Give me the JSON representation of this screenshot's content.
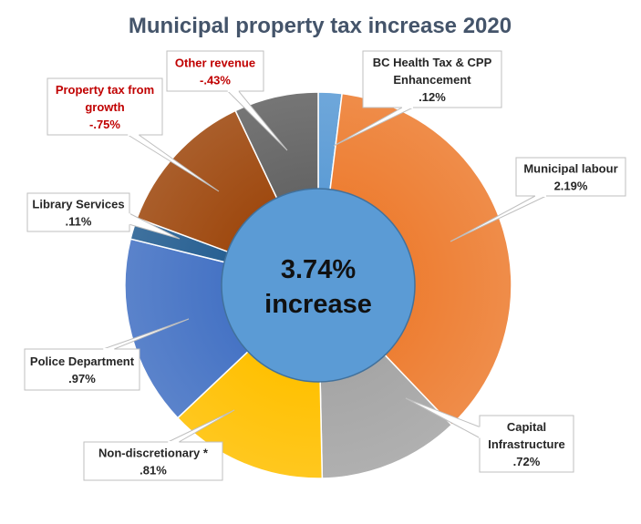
{
  "chart_data": {
    "type": "pie",
    "title": "Municipal property tax increase 2020",
    "center_label": [
      "3.74%",
      "increase"
    ],
    "legend": "none",
    "slices": [
      {
        "name_lines": [
          "BC Health Tax & CPP",
          "Enhancement"
        ],
        "value_label": ".12%",
        "value": 0.12,
        "color": "#5b9bd5",
        "label_color": "#262626"
      },
      {
        "name_lines": [
          "Municipal labour"
        ],
        "value_label": "2.19%",
        "value": 2.19,
        "color": "#ed7d31",
        "label_color": "#262626"
      },
      {
        "name_lines": [
          "Capital",
          "Infrastructure"
        ],
        "value_label": ".72%",
        "value": 0.72,
        "color": "#a5a5a5",
        "label_color": "#262626"
      },
      {
        "name_lines": [
          "Non-discretionary *"
        ],
        "value_label": ".81%",
        "value": 0.81,
        "color": "#ffc000",
        "label_color": "#262626"
      },
      {
        "name_lines": [
          "Police Department"
        ],
        "value_label": ".97%",
        "value": 0.97,
        "color": "#4472c4",
        "label_color": "#262626"
      },
      {
        "name_lines": [
          "Library Services"
        ],
        "value_label": ".11%",
        "value": 0.11,
        "color": "#255e91",
        "label_color": "#262626"
      },
      {
        "name_lines": [
          "Property tax from",
          "growth"
        ],
        "value_label": "-.75%",
        "value": -0.75,
        "color": "#9e480e",
        "label_color": "#c00000"
      },
      {
        "name_lines": [
          "Other revenue"
        ],
        "value_label": "-.43%",
        "value": -0.43,
        "color": "#636363",
        "label_color": "#c00000"
      }
    ]
  }
}
